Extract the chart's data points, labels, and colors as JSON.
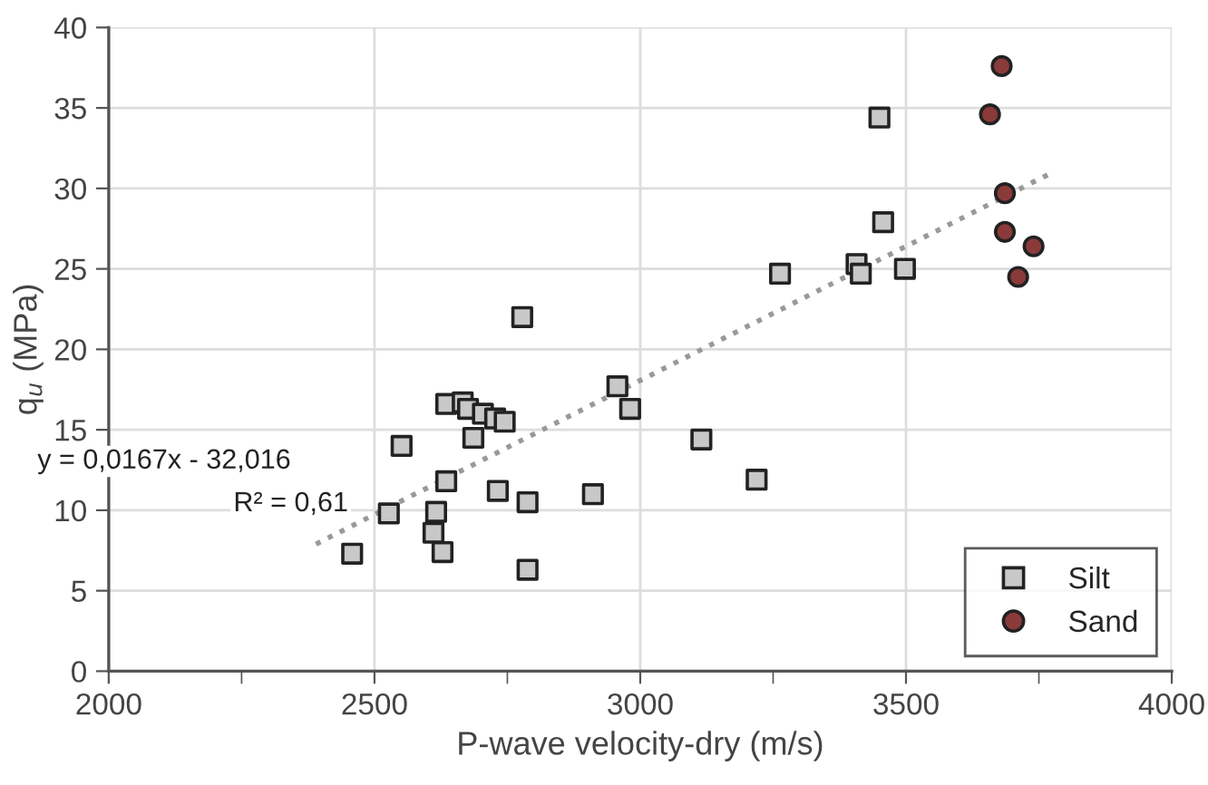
{
  "chart_data": {
    "type": "scatter",
    "xlabel": "P-wave velocity-dry (m/s)",
    "ylabel": "q$_{u}$ (MPa)",
    "xlim": [
      2000,
      4000
    ],
    "xticks": [
      2000,
      {
        "value": 2250,
        "label": null
      },
      2500,
      {
        "value": 2750,
        "label": null
      },
      3000,
      {
        "value": 3250,
        "label": null
      },
      3500,
      {
        "value": 3750,
        "label": null
      },
      4000
    ],
    "ylim": [
      0,
      40
    ],
    "yticks": [
      0,
      5,
      10,
      15,
      20,
      25,
      30,
      35,
      40
    ],
    "grid": true,
    "legend": "bottom right",
    "annotations": [
      {
        "text": "y = 0,0167x - 32,016",
        "x": 2390,
        "y": 7.9
      },
      {
        "text": "R² = 0,61",
        "x": 2390,
        "y": 7.9
      }
    ],
    "series": [
      {
        "name": "Silt",
        "color": "#c8c8c8",
        "marker": "square",
        "x": [
          2458,
          2527,
          2551,
          2635,
          2666,
          2676,
          2704,
          2727,
          2745,
          2686,
          2635,
          2616,
          2611,
          2628,
          2732,
          2788,
          2788,
          2911,
          2957,
          2981,
          2778,
          3115,
          3219,
          3263,
          3407,
          3415,
          3498,
          3457,
          3450
        ],
        "values": [
          7.3,
          9.8,
          14.0,
          16.6,
          16.7,
          16.3,
          16.0,
          15.7,
          15.5,
          14.5,
          11.8,
          9.9,
          8.6,
          7.4,
          11.2,
          10.5,
          6.3,
          11.0,
          17.7,
          16.3,
          22.0,
          14.4,
          11.9,
          24.7,
          25.3,
          24.7,
          25.0,
          27.9,
          34.4
        ]
      },
      {
        "name": "Sand",
        "color": "#8b3a3a",
        "marker": "circle",
        "x": [
          3680,
          3658,
          3686,
          3686,
          3740,
          3711
        ],
        "values": [
          37.6,
          34.6,
          29.7,
          27.3,
          26.4,
          24.5
        ]
      },
      {
        "type": "line",
        "color": "#999999",
        "line_style": "dotted",
        "x": [
          2390,
          3770
        ],
        "values": [
          7.9,
          30.9
        ]
      }
    ]
  }
}
